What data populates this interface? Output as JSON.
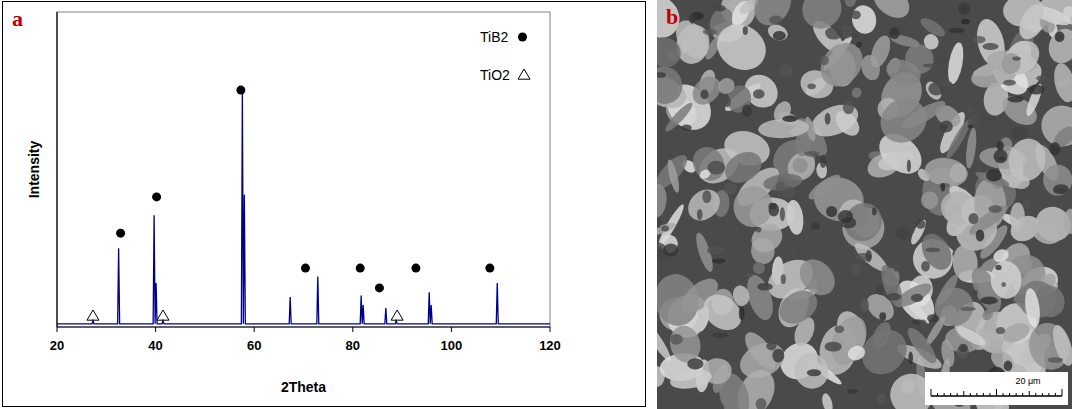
{
  "chart_data": {
    "type": "line",
    "panel_label": "a",
    "x_label": "2Theta",
    "y_label": "Intensity",
    "xlim": [
      20,
      120
    ],
    "ylim": [
      0,
      100
    ],
    "xticks": [
      20,
      40,
      60,
      80,
      100,
      120
    ],
    "tick_labels": "x",
    "grid": false,
    "legend": "upper right",
    "series": [
      {
        "type": "line",
        "color": "#00008b",
        "marker": "none",
        "line_style": "solid",
        "x": [
          20,
          27.1,
          27.3,
          27.5,
          32.3,
          32.5,
          32.7,
          39.5,
          39.7,
          39.9,
          40.1,
          40.3,
          41.3,
          41.5,
          41.7,
          57.4,
          57.6,
          57.8,
          58.0,
          58.2,
          67.1,
          67.3,
          67.5,
          72.7,
          72.9,
          73.1,
          81.5,
          81.7,
          81.9,
          82.1,
          82.3,
          86.5,
          86.7,
          86.9,
          88.6,
          88.8,
          89.0,
          95.3,
          95.5,
          95.7,
          95.9,
          96.1,
          109.1,
          109.3,
          109.5,
          120
        ],
        "values": [
          1,
          1,
          2,
          1,
          1,
          25,
          1,
          1,
          35.5,
          1,
          14,
          1,
          1,
          2,
          1,
          1,
          74.6,
          1,
          42,
          1,
          1,
          9.5,
          1,
          1,
          16,
          1,
          1,
          10,
          1,
          7,
          1,
          1,
          6,
          1,
          1,
          2,
          1,
          1,
          11,
          1,
          7,
          1,
          1,
          14,
          1,
          1
        ]
      },
      {
        "name": "TiB2",
        "type": "scatter",
        "color": "#000000",
        "marker": "circle",
        "x": [
          32.9,
          40.2,
          57.3,
          70.4,
          81.5,
          85.4,
          92.8,
          107.8
        ],
        "values": [
          29.8,
          41.3,
          75.2,
          18.7,
          18.7,
          12.4,
          18.7,
          18.7
        ]
      },
      {
        "name": "TiO2",
        "type": "scatter",
        "color": "#000000",
        "marker": "triangle",
        "x": [
          27.3,
          41.5,
          89.0
        ],
        "values": [
          3.5,
          3.5,
          3.5
        ]
      }
    ]
  },
  "image_panel": {
    "panel_label": "b",
    "scale_bar": "20 μm"
  }
}
